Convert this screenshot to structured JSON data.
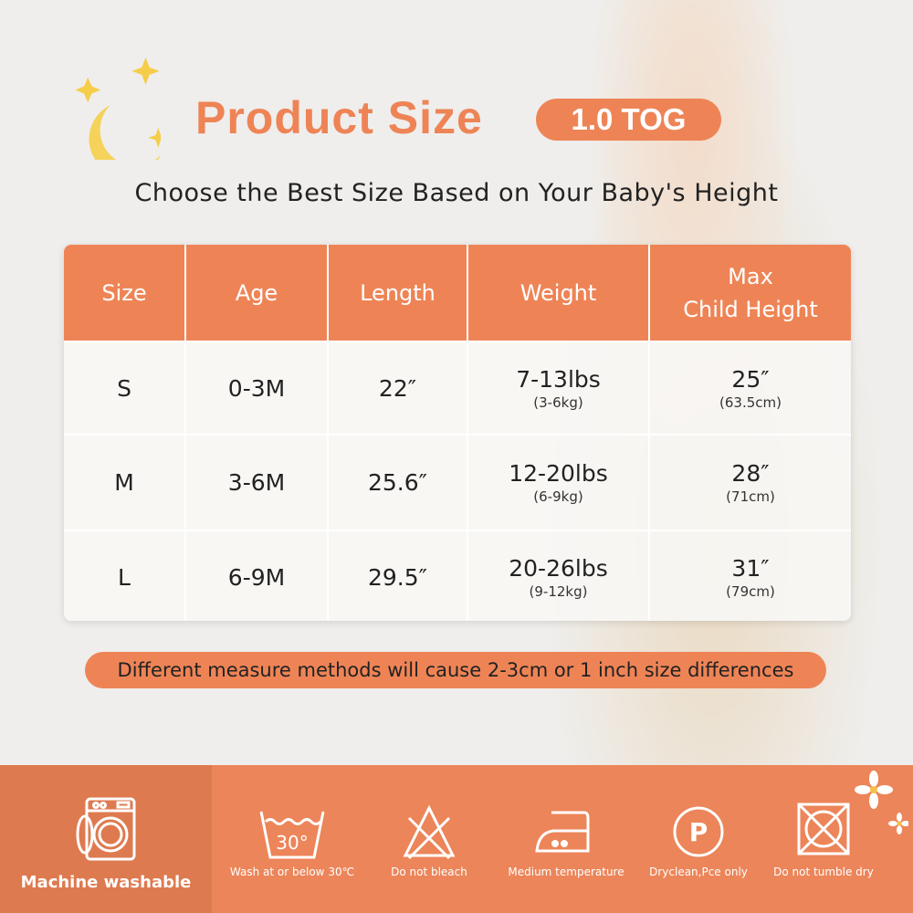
{
  "header": {
    "title": "Product Size",
    "tog_badge": "1.0 TOG",
    "subtitle": "Choose the Best Size Based on Your Baby's Height"
  },
  "table": {
    "columns": [
      "Size",
      "Age",
      "Length",
      "Weight",
      "Max\nChild Height"
    ],
    "rows": [
      {
        "size": "S",
        "age": "0-3M",
        "length": "22″",
        "weight": "7-13lbs",
        "weight_kg": "(3-6kg)",
        "height": "25″",
        "height_cm": "(63.5cm)"
      },
      {
        "size": "M",
        "age": "3-6M",
        "length": "25.6″",
        "weight": "12-20lbs",
        "weight_kg": "(6-9kg)",
        "height": "28″",
        "height_cm": "(71cm)"
      },
      {
        "size": "L",
        "age": "6-9M",
        "length": "29.5″",
        "weight": "20-26lbs",
        "weight_kg": "(9-12kg)",
        "height": "31″",
        "height_cm": "(79cm)"
      }
    ]
  },
  "note": "Different measure methods will cause 2-3cm or 1 inch size differences",
  "care": {
    "machine": "Machine washable",
    "items": [
      {
        "icon": "wash-30-icon",
        "label": "Wash at or below 30℃"
      },
      {
        "icon": "no-bleach-icon",
        "label": "Do not bleach"
      },
      {
        "icon": "iron-medium-icon",
        "label": "Medium temperature"
      },
      {
        "icon": "dryclean-p-icon",
        "label": "Dryclean,Pce only"
      },
      {
        "icon": "no-tumble-dry-icon",
        "label": "Do not tumble dry"
      }
    ],
    "wash_temp": "30°",
    "dryclean_letter": "P"
  },
  "colors": {
    "accent": "#ee8456",
    "band": "#ec8559",
    "band_dark": "#de7a4f"
  }
}
